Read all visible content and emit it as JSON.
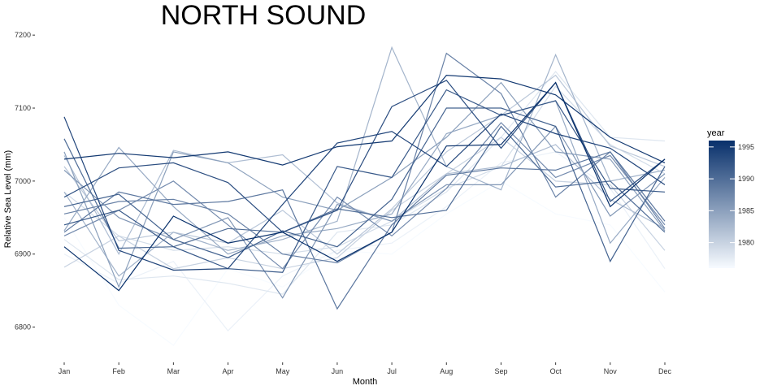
{
  "chart_data": {
    "type": "line",
    "title": "NORTH SOUND",
    "xlabel": "Month",
    "ylabel": "Relative Sea Level (mm)",
    "categories": [
      "Jan",
      "Feb",
      "Mar",
      "Apr",
      "May",
      "Jun",
      "Jul",
      "Aug",
      "Sep",
      "Oct",
      "Nov",
      "Dec"
    ],
    "ylim": [
      6755,
      7218
    ],
    "yticks": [
      6800,
      6900,
      7000,
      7100,
      7200
    ],
    "grid": false,
    "legend": {
      "title": "year",
      "placement": "right",
      "type": "colorbar",
      "range": [
        1976,
        1996
      ],
      "ticks": [
        1980,
        1985,
        1990,
        1995
      ],
      "color_low": "#f7fbff",
      "color_high": "#08306b"
    },
    "series": [
      {
        "year": 1976,
        "values": [
          6950,
          6830,
          6775,
          6880,
          6855,
          6905,
          6900,
          6955,
          7000,
          6955,
          6940,
          6848
        ]
      },
      {
        "year": 1977,
        "values": [
          6900,
          6860,
          6890,
          6795,
          6870,
          6905,
          6915,
          6965,
          7025,
          7040,
          6990,
          6880
        ]
      },
      {
        "year": 1978,
        "values": [
          6920,
          6865,
          6870,
          6860,
          6845,
          6930,
          6940,
          6985,
          7060,
          7150,
          7060,
          7055
        ]
      },
      {
        "year": 1979,
        "values": [
          6985,
          6925,
          6905,
          6910,
          6900,
          6910,
          6945,
          6990,
          7020,
          7130,
          7050,
          7010
        ]
      },
      {
        "year": 1980,
        "values": [
          6882,
          6925,
          6880,
          6895,
          6880,
          6895,
          6960,
          7010,
          7060,
          7000,
          6995,
          6905
        ]
      },
      {
        "year": 1981,
        "values": [
          7020,
          6918,
          6930,
          6915,
          6960,
          6900,
          6962,
          7040,
          7090,
          7145,
          7048,
          7020
        ]
      },
      {
        "year": 1982,
        "values": [
          7035,
          6900,
          7042,
          7025,
          7036,
          6970,
          6945,
          7010,
          7020,
          7050,
          6975,
          6935
        ]
      },
      {
        "year": 1983,
        "values": [
          6985,
          6870,
          6930,
          6905,
          6920,
          6945,
          7183,
          7020,
          6988,
          7173,
          7000,
          7015
        ]
      },
      {
        "year": 1984,
        "values": [
          6932,
          7046,
          6965,
          6900,
          6925,
          6935,
          6955,
          7065,
          7090,
          7110,
          6915,
          7005
        ]
      },
      {
        "year": 1985,
        "values": [
          7040,
          6855,
          7040,
          7025,
          6978,
          6960,
          7005,
          7060,
          7135,
          7040,
          7030,
          6932
        ]
      },
      {
        "year": 1986,
        "values": [
          7015,
          6950,
          6920,
          6950,
          6840,
          6968,
          6945,
          6995,
          6995,
          7075,
          6952,
          7010
        ]
      },
      {
        "year": 1987,
        "values": [
          6925,
          6960,
          7000,
          6940,
          6880,
          6978,
          6925,
          6990,
          7080,
          7005,
          7035,
          6940
        ]
      },
      {
        "year": 1988,
        "values": [
          6955,
          6972,
          6975,
          6955,
          6900,
          6888,
          6930,
          7175,
          7120,
          6978,
          7040,
          6935
        ]
      },
      {
        "year": 1989,
        "values": [
          6930,
          6985,
          6968,
          6972,
          6988,
          6825,
          6940,
          7008,
          7018,
          7015,
          7040,
          6945
        ]
      },
      {
        "year": 1990,
        "values": [
          7058,
          6908,
          6910,
          6935,
          6930,
          6962,
          6950,
          6960,
          7075,
          6992,
          7000,
          6930
        ]
      },
      {
        "year": 1991,
        "values": [
          6965,
          6982,
          6920,
          6895,
          6932,
          6910,
          6975,
          7100,
          7100,
          7075,
          6890,
          7020
        ]
      },
      {
        "year": 1992,
        "values": [
          6940,
          6960,
          6910,
          6880,
          6875,
          7020,
          7005,
          7125,
          7090,
          7110,
          6990,
          6985
        ]
      },
      {
        "year": 1993,
        "values": [
          6978,
          7018,
          7025,
          6998,
          6930,
          6960,
          7102,
          7138,
          7045,
          7135,
          6972,
          7030
        ]
      },
      {
        "year": 1994,
        "values": [
          7088,
          6905,
          6878,
          6880,
          6968,
          7052,
          7068,
          7020,
          7092,
          7065,
          7045,
          6995
        ]
      },
      {
        "year": 1995,
        "values": [
          7030,
          7038,
          7032,
          7040,
          7022,
          7047,
          7055,
          7145,
          7140,
          7118,
          7060,
          7025
        ]
      },
      {
        "year": 1996,
        "values": [
          6910,
          6850,
          6952,
          6915,
          6930,
          6890,
          6930,
          7048,
          7050,
          7135,
          6965,
          7030
        ]
      }
    ]
  }
}
